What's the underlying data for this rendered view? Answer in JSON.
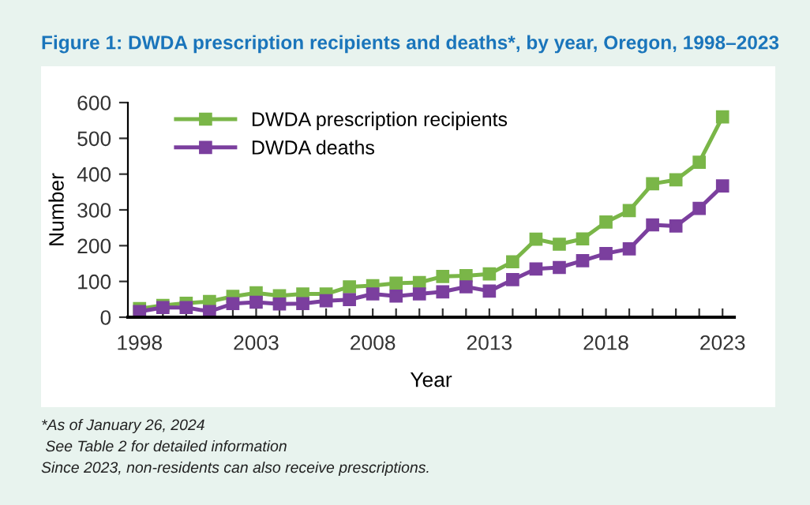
{
  "chart_data": {
    "type": "line",
    "title": "Figure 1: DWDA prescription recipients and deaths*, by year, Oregon, 1998–2023",
    "xlabel": "Year",
    "ylabel": "Number",
    "x": [
      1998,
      1999,
      2000,
      2001,
      2002,
      2003,
      2004,
      2005,
      2006,
      2007,
      2008,
      2009,
      2010,
      2011,
      2012,
      2013,
      2014,
      2015,
      2016,
      2017,
      2018,
      2019,
      2020,
      2021,
      2022,
      2023
    ],
    "series": [
      {
        "name": "DWDA prescription recipients",
        "color": "#7ab648",
        "values": [
          24,
          33,
          39,
          44,
          58,
          68,
          60,
          65,
          65,
          85,
          88,
          95,
          97,
          114,
          116,
          121,
          155,
          218,
          204,
          219,
          266,
          298,
          373,
          384,
          433,
          560
        ]
      },
      {
        "name": "DWDA deaths",
        "color": "#7b3f9e",
        "values": [
          16,
          27,
          27,
          16,
          38,
          42,
          37,
          38,
          46,
          49,
          65,
          59,
          65,
          71,
          85,
          73,
          105,
          135,
          139,
          158,
          178,
          191,
          258,
          255,
          304,
          367
        ]
      }
    ],
    "xlim": [
      1997.5,
      2023.5
    ],
    "ylim": [
      0,
      600
    ],
    "xticks": [
      1998,
      {
        "value": 1999,
        "label": null
      },
      {
        "value": 2000,
        "label": null
      },
      {
        "value": 2001,
        "label": null
      },
      {
        "value": 2002,
        "label": null
      },
      2003,
      {
        "value": 2004,
        "label": null
      },
      {
        "value": 2005,
        "label": null
      },
      {
        "value": 2006,
        "label": null
      },
      {
        "value": 2007,
        "label": null
      },
      2008,
      {
        "value": 2009,
        "label": null
      },
      {
        "value": 2010,
        "label": null
      },
      {
        "value": 2011,
        "label": null
      },
      {
        "value": 2012,
        "label": null
      },
      2013,
      {
        "value": 2014,
        "label": null
      },
      {
        "value": 2015,
        "label": null
      },
      {
        "value": 2016,
        "label": null
      },
      {
        "value": 2017,
        "label": null
      },
      2018,
      {
        "value": 2019,
        "label": null
      },
      {
        "value": 2020,
        "label": null
      },
      {
        "value": 2021,
        "label": null
      },
      {
        "value": 2022,
        "label": null
      },
      2023
    ],
    "yticks": [
      0,
      100,
      200,
      300,
      400,
      500,
      600
    ],
    "marker": "square",
    "line_style": "solid",
    "grid": false,
    "legend": "top left",
    "annotations": [
      "*As of January 26, 2024",
      " See Table 2 for detailed information",
      "Since 2023, non-residents can also receive prescriptions."
    ]
  }
}
